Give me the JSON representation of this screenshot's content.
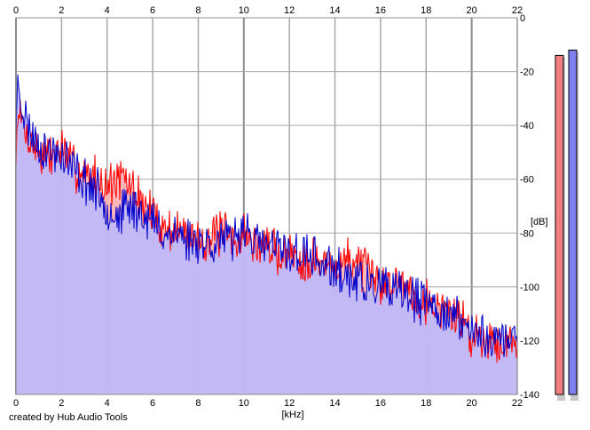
{
  "footer": {
    "credit": "created by Hub Audio Tools"
  },
  "colors": {
    "background": "#ffffff",
    "grid": "#a8a8a8",
    "grid_major": "#8c8c8c",
    "left_channel": "#ff0000",
    "left_fill": "#ffb0b0",
    "right_channel": "#0000cc",
    "right_fill": "#b8b8ff",
    "meter_left": "#f08080",
    "meter_right": "#8080f0"
  },
  "chart_data": {
    "type": "area",
    "title": "",
    "xlabel": "[kHz]",
    "ylabel": "[dB]",
    "xlim": [
      0,
      22
    ],
    "ylim": [
      -140,
      0
    ],
    "x_ticks": [
      "0",
      "2",
      "4",
      "6",
      "8",
      "10",
      "12",
      "14",
      "16",
      "18",
      "20",
      "22"
    ],
    "y_ticks": [
      "0",
      "-20",
      "-40",
      "-60",
      "-80",
      "-100",
      "-120",
      "-140"
    ],
    "grid": true,
    "legend": "none",
    "series": [
      {
        "channel": "left",
        "x": [
          0.0,
          0.1,
          0.2,
          0.5,
          1.0,
          1.5,
          2.0,
          2.5,
          3.0,
          3.5,
          4.0,
          4.5,
          5.0,
          5.5,
          6.0,
          6.5,
          7.0,
          7.5,
          8.0,
          8.5,
          9.0,
          9.5,
          10.0,
          10.5,
          11.0,
          11.5,
          12.0,
          12.5,
          13.0,
          13.5,
          14.0,
          14.5,
          15.0,
          15.5,
          16.0,
          16.5,
          17.0,
          17.5,
          18.0,
          18.5,
          19.0,
          19.5,
          20.0,
          20.5,
          21.0,
          21.5,
          22.0
        ],
        "values": [
          -55,
          -30,
          -38,
          -44,
          -50,
          -52,
          -48,
          -55,
          -58,
          -59,
          -62,
          -60,
          -62,
          -68,
          -73,
          -78,
          -79,
          -80,
          -82,
          -82,
          -80,
          -83,
          -80,
          -85,
          -84,
          -88,
          -87,
          -90,
          -89,
          -92,
          -92,
          -90,
          -90,
          -96,
          -98,
          -99,
          -97,
          -103,
          -105,
          -107,
          -109,
          -111,
          -118,
          -118,
          -120,
          -121,
          -121
        ]
      },
      {
        "channel": "right",
        "x": [
          0.0,
          0.1,
          0.2,
          0.5,
          1.0,
          1.5,
          2.0,
          2.5,
          3.0,
          3.5,
          4.0,
          4.5,
          5.0,
          5.5,
          6.0,
          6.5,
          7.0,
          7.5,
          8.0,
          8.5,
          9.0,
          9.5,
          10.0,
          10.5,
          11.0,
          11.5,
          12.0,
          12.5,
          13.0,
          13.5,
          14.0,
          14.5,
          15.0,
          15.5,
          16.0,
          16.5,
          17.0,
          17.5,
          18.0,
          18.5,
          19.0,
          19.5,
          20.0,
          20.5,
          21.0,
          21.5,
          22.0
        ],
        "values": [
          -40,
          -22,
          -30,
          -40,
          -47,
          -50,
          -50,
          -56,
          -60,
          -64,
          -70,
          -74,
          -70,
          -72,
          -76,
          -80,
          -80,
          -82,
          -82,
          -84,
          -82,
          -84,
          -76,
          -84,
          -85,
          -86,
          -87,
          -88,
          -89,
          -92,
          -94,
          -96,
          -98,
          -100,
          -100,
          -103,
          -102,
          -105,
          -106,
          -108,
          -110,
          -112,
          -117,
          -118,
          -119,
          -120,
          -119
        ]
      }
    ],
    "level_meters": [
      {
        "channel": "left",
        "top_db": -14
      },
      {
        "channel": "right",
        "top_db": -12
      }
    ]
  }
}
